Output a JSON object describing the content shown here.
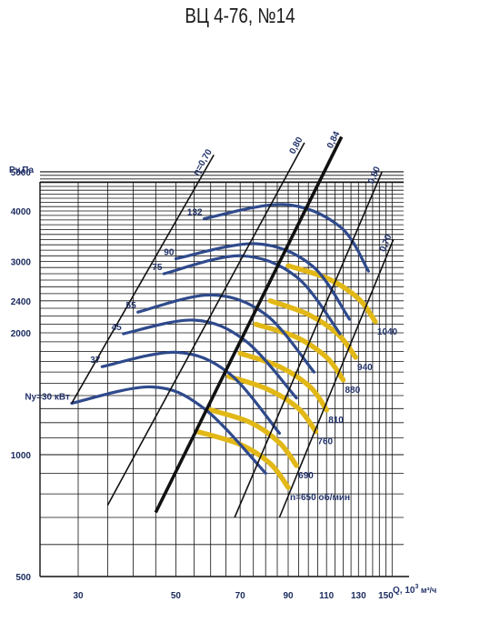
{
  "title": "ВЦ 4-76, №14",
  "chart_data": {
    "type": "line",
    "y_axis": {
      "label": "Pv,Па",
      "scale": "log",
      "ticks": [
        500,
        1000,
        2000,
        2400,
        3000,
        4000,
        5000
      ],
      "range": [
        500,
        5000
      ]
    },
    "x_axis": {
      "label_main": "Q, 10",
      "label_sup": "3",
      "label_unit": " м³/ч",
      "scale": "log",
      "ticks": [
        30,
        50,
        70,
        90,
        110,
        130,
        150
      ],
      "range": [
        26,
        156
      ]
    },
    "speeds": [
      {
        "label": "n=650 об/мин",
        "rpm": 650,
        "points": [
          [
            56,
            1140
          ],
          [
            70,
            1060
          ],
          [
            82,
            950
          ],
          [
            90,
            830
          ]
        ]
      },
      {
        "label": "690",
        "rpm": 690,
        "points": [
          [
            60,
            1290
          ],
          [
            74,
            1200
          ],
          [
            86,
            1070
          ],
          [
            94,
            940
          ]
        ]
      },
      {
        "label": "760",
        "rpm": 760,
        "points": [
          [
            66,
            1560
          ],
          [
            81,
            1450
          ],
          [
            95,
            1300
          ],
          [
            104,
            1140
          ]
        ]
      },
      {
        "label": "810",
        "rpm": 810,
        "points": [
          [
            70,
            1780
          ],
          [
            86,
            1650
          ],
          [
            101,
            1470
          ],
          [
            110,
            1290
          ]
        ]
      },
      {
        "label": "880",
        "rpm": 880,
        "points": [
          [
            76,
            2100
          ],
          [
            94,
            1950
          ],
          [
            110,
            1740
          ],
          [
            120,
            1530
          ]
        ]
      },
      {
        "label": "940",
        "rpm": 940,
        "points": [
          [
            82,
            2400
          ],
          [
            100,
            2220
          ],
          [
            117,
            1980
          ],
          [
            128,
            1740
          ]
        ]
      },
      {
        "label": "1040",
        "rpm": 1040,
        "points": [
          [
            90,
            2930
          ],
          [
            111,
            2720
          ],
          [
            130,
            2430
          ],
          [
            142,
            2130
          ]
        ]
      }
    ],
    "efficiency_lines": [
      {
        "label": "η=0,70",
        "points": [
          [
            29,
            1340
          ],
          [
            61,
            5500
          ]
        ]
      },
      {
        "label": "0,80",
        "points": [
          [
            35,
            750
          ],
          [
            98,
            5900
          ]
        ]
      },
      {
        "label": "0,84",
        "points": [
          [
            45,
            720
          ],
          [
            119,
            6100
          ]
        ]
      },
      {
        "label": "0,80",
        "points": [
          [
            68,
            700
          ],
          [
            147,
            5000
          ]
        ]
      },
      {
        "label": "0,70",
        "points": [
          [
            86,
            700
          ],
          [
            156,
            3400
          ]
        ]
      }
    ],
    "power_curves": [
      {
        "label": "Ny=30 кВт",
        "points": [
          [
            29,
            1340
          ],
          [
            44,
            1470
          ],
          [
            58,
            1300
          ],
          [
            80,
            900
          ]
        ]
      },
      {
        "label": "37",
        "points": [
          [
            34,
            1650
          ],
          [
            50,
            1790
          ],
          [
            66,
            1590
          ],
          [
            86,
            1130
          ]
        ]
      },
      {
        "label": "45",
        "points": [
          [
            38,
            1990
          ],
          [
            55,
            2150
          ],
          [
            72,
            1910
          ],
          [
            94,
            1380
          ]
        ]
      },
      {
        "label": "55",
        "points": [
          [
            41,
            2250
          ],
          [
            60,
            2480
          ],
          [
            80,
            2220
          ],
          [
            103,
            1600
          ]
        ]
      },
      {
        "label": "75",
        "points": [
          [
            47,
            2800
          ],
          [
            70,
            3100
          ],
          [
            94,
            2750
          ],
          [
            118,
            1990
          ]
        ]
      },
      {
        "label": "90",
        "points": [
          [
            50,
            3050
          ],
          [
            76,
            3320
          ],
          [
            102,
            2930
          ],
          [
            124,
            2160
          ]
        ]
      },
      {
        "label": "132",
        "points": [
          [
            58,
            3830
          ],
          [
            88,
            4150
          ],
          [
            118,
            3660
          ],
          [
            137,
            2840
          ]
        ]
      }
    ],
    "colors": {
      "speed_curve": "#e2b817",
      "power_curve": "#2f4a8c",
      "efficiency_line": "#111111",
      "grid": "#111111",
      "label": "#23336b"
    }
  }
}
